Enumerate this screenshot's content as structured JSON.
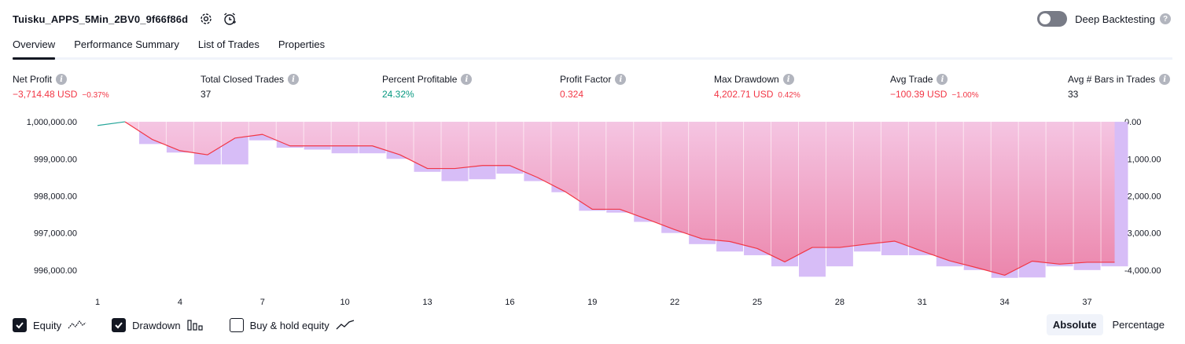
{
  "header": {
    "strategy_name": "Tuisku_APPS_5Min_2BV0_9f66f86d",
    "settings_icon": "gear-icon",
    "alert_icon": "alarm-clock-icon"
  },
  "deep_backtesting": {
    "label": "Deep Backtesting",
    "enabled": false
  },
  "tabs": [
    {
      "label": "Overview",
      "active": true
    },
    {
      "label": "Performance Summary",
      "active": false
    },
    {
      "label": "List of Trades",
      "active": false
    },
    {
      "label": "Properties",
      "active": false
    }
  ],
  "metrics": {
    "net_profit": {
      "label": "Net Profit",
      "value": "−3,714.48 USD",
      "pct": "−0.37%"
    },
    "total_closed_trades": {
      "label": "Total Closed Trades",
      "value": "37"
    },
    "percent_profitable": {
      "label": "Percent Profitable",
      "value": "24.32%"
    },
    "profit_factor": {
      "label": "Profit Factor",
      "value": "0.324"
    },
    "max_drawdown": {
      "label": "Max Drawdown",
      "value": "4,202.71 USD",
      "pct": "0.42%"
    },
    "avg_trade": {
      "label": "Avg Trade",
      "value": "−100.39 USD",
      "pct": "−1.00%"
    },
    "avg_bars": {
      "label": "Avg # Bars in Trades",
      "value": "33"
    }
  },
  "chart_data": {
    "type": "line",
    "x": [
      1,
      2,
      3,
      4,
      5,
      6,
      7,
      8,
      9,
      10,
      11,
      12,
      13,
      14,
      15,
      16,
      17,
      18,
      19,
      20,
      21,
      22,
      23,
      24,
      25,
      26,
      27,
      28,
      29,
      30,
      31,
      32,
      33,
      34,
      35,
      36,
      37,
      38
    ],
    "xticks": [
      1,
      4,
      7,
      10,
      13,
      16,
      19,
      22,
      25,
      28,
      31,
      34,
      37
    ],
    "left_axis": {
      "ylim": [
        995700,
        1000150
      ],
      "ticks": [
        1000000,
        999000,
        998000,
        997000,
        996000
      ],
      "tick_labels": [
        "1,000,000.00",
        "999,000.00",
        "998,000.00",
        "997,000.00",
        "996,000.00"
      ]
    },
    "right_axis": {
      "ylim": [
        -4300,
        150
      ],
      "ticks": [
        0,
        -1000,
        -2000,
        -3000,
        -4000
      ],
      "tick_labels": [
        "0.00",
        "-1,000.00",
        "-2,000.00",
        "-3,000.00",
        "-4,000.00"
      ]
    },
    "series": [
      {
        "key": "equity",
        "values": [
          999900,
          1000000,
          999520,
          999220,
          999110,
          999560,
          999660,
          999350,
          999350,
          999350,
          999350,
          999110,
          998740,
          998740,
          998820,
          998820,
          998500,
          998120,
          997640,
          997640,
          997370,
          997090,
          996840,
          996770,
          996580,
          996220,
          996610,
          996610,
          996700,
          996780,
          996510,
          996250,
          996060,
          995860,
          996240,
          996160,
          996210,
          996210
        ],
        "color": "#f23645"
      },
      {
        "key": "drawdown",
        "values": [
          0,
          0,
          -600,
          -830,
          -1150,
          -1150,
          -500,
          -700,
          -750,
          -850,
          -850,
          -1000,
          -1350,
          -1600,
          -1550,
          -1400,
          -1600,
          -1900,
          -2400,
          -2450,
          -2700,
          -3000,
          -3300,
          -3500,
          -3600,
          -3900,
          -4180,
          -3900,
          -3500,
          -3600,
          -3600,
          -3900,
          -4000,
          -4210,
          -4200,
          -3900,
          -4000,
          -3900
        ],
        "color": "#d8bdf5"
      }
    ],
    "colors": {
      "equity_line": "#f23645",
      "equity_fill_top": "#f8c6e0",
      "equity_fill_bottom": "#ee80a4",
      "drawdown_bar": "#d7bdf7",
      "pre_trade_line": "#26a69a"
    }
  },
  "legend": [
    {
      "label": "Equity",
      "checked": true,
      "icon": "equity-line-icon"
    },
    {
      "label": "Drawdown",
      "checked": true,
      "icon": "drawdown-bars-icon"
    },
    {
      "label": "Buy & hold equity",
      "checked": false,
      "icon": "buy-hold-line-icon"
    }
  ],
  "modes": [
    {
      "label": "Absolute",
      "active": true
    },
    {
      "label": "Percentage",
      "active": false
    }
  ]
}
